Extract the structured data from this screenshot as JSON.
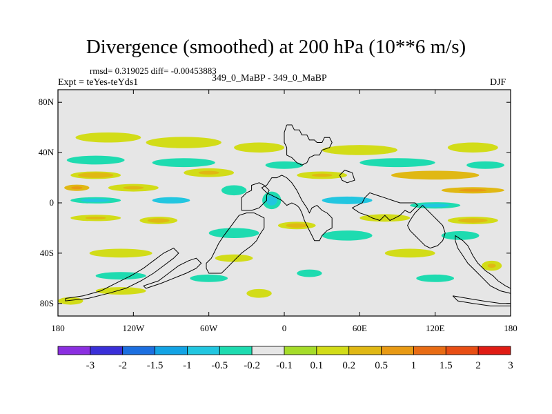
{
  "title": "Divergence (smoothed) at 200 hPa (10**6 m/s)",
  "stats_line": "rmsd= 0.319025 diff= -0.00453883",
  "case_line": "349_0_MaBP - 349_0_MaBP",
  "experiment_label": "Expt = teYes-teYds1",
  "season_label": "DJF",
  "colors": {
    "background": "#e6e6e6",
    "outline": "#000000",
    "palette": [
      "#8b2fe0",
      "#3a2fd8",
      "#1c6fe0",
      "#13a3e4",
      "#22c6e0",
      "#1edbb0",
      "#e6e6e6",
      "#a5dc2a",
      "#d2dc18",
      "#e0b814",
      "#e89a14",
      "#e86c14",
      "#e84e14",
      "#e01c14"
    ]
  },
  "map": {
    "lon_range": [
      -180,
      180
    ],
    "lat_range": [
      -90,
      90
    ],
    "lat_ticks": [
      {
        "value": 80,
        "label": "80N"
      },
      {
        "value": 40,
        "label": "40N"
      },
      {
        "value": 0,
        "label": "0"
      },
      {
        "value": -40,
        "label": "40S"
      },
      {
        "value": -80,
        "label": "80S"
      }
    ],
    "lon_ticks": [
      {
        "value": -180,
        "label": "180"
      },
      {
        "value": -120,
        "label": "120W"
      },
      {
        "value": -60,
        "label": "60W"
      },
      {
        "value": 0,
        "label": "0"
      },
      {
        "value": 60,
        "label": "60E"
      },
      {
        "value": 120,
        "label": "120E"
      },
      {
        "value": 180,
        "label": "180"
      }
    ],
    "continents": [
      [
        [
          2,
          62
        ],
        [
          6,
          62
        ],
        [
          8,
          58
        ],
        [
          12,
          58
        ],
        [
          14,
          54
        ],
        [
          18,
          54
        ],
        [
          20,
          50
        ],
        [
          24,
          50
        ],
        [
          26,
          48
        ],
        [
          30,
          48
        ],
        [
          32,
          52
        ],
        [
          36,
          52
        ],
        [
          38,
          48
        ],
        [
          36,
          44
        ],
        [
          30,
          42
        ],
        [
          28,
          38
        ],
        [
          24,
          38
        ],
        [
          20,
          36
        ],
        [
          18,
          32
        ],
        [
          14,
          30
        ],
        [
          10,
          32
        ],
        [
          6,
          36
        ],
        [
          2,
          38
        ],
        [
          2,
          44
        ],
        [
          0,
          48
        ],
        [
          0,
          56
        ],
        [
          2,
          62
        ]
      ],
      [
        [
          -18,
          12
        ],
        [
          -14,
          14
        ],
        [
          -10,
          20
        ],
        [
          -6,
          20
        ],
        [
          -2,
          22
        ],
        [
          2,
          20
        ],
        [
          6,
          16
        ],
        [
          10,
          10
        ],
        [
          14,
          2
        ],
        [
          18,
          -4
        ],
        [
          20,
          -8
        ],
        [
          22,
          -4
        ],
        [
          26,
          -2
        ],
        [
          30,
          -6
        ],
        [
          34,
          -8
        ],
        [
          38,
          -12
        ],
        [
          38,
          -20
        ],
        [
          34,
          -22
        ],
        [
          30,
          -26
        ],
        [
          28,
          -30
        ],
        [
          24,
          -30
        ],
        [
          22,
          -26
        ],
        [
          20,
          -22
        ],
        [
          18,
          -18
        ],
        [
          16,
          -14
        ],
        [
          14,
          -8
        ],
        [
          12,
          -4
        ],
        [
          10,
          -2
        ],
        [
          6,
          0
        ],
        [
          2,
          -2
        ],
        [
          -2,
          2
        ],
        [
          -6,
          4
        ],
        [
          -10,
          6
        ],
        [
          -14,
          8
        ],
        [
          -18,
          12
        ]
      ],
      [
        [
          -34,
          -6
        ],
        [
          -26,
          -6
        ],
        [
          -20,
          -4
        ],
        [
          -18,
          -2
        ],
        [
          -14,
          2
        ],
        [
          -14,
          6
        ],
        [
          -12,
          10
        ],
        [
          -16,
          14
        ],
        [
          -20,
          16
        ],
        [
          -26,
          14
        ],
        [
          -26,
          10
        ],
        [
          -30,
          8
        ],
        [
          -34,
          4
        ],
        [
          -34,
          -2
        ],
        [
          -34,
          -6
        ]
      ],
      [
        [
          -24,
          -8
        ],
        [
          -20,
          -10
        ],
        [
          -16,
          -12
        ],
        [
          -16,
          -20
        ],
        [
          -20,
          -26
        ],
        [
          -22,
          -30
        ],
        [
          -26,
          -34
        ],
        [
          -34,
          -40
        ],
        [
          -40,
          -46
        ],
        [
          -46,
          -52
        ],
        [
          -50,
          -56
        ],
        [
          -60,
          -56
        ],
        [
          -62,
          -52
        ],
        [
          -62,
          -48
        ],
        [
          -58,
          -44
        ],
        [
          -56,
          -40
        ],
        [
          -52,
          -32
        ],
        [
          -48,
          -26
        ],
        [
          -42,
          -18
        ],
        [
          -36,
          -10
        ],
        [
          -30,
          -8
        ],
        [
          -24,
          -8
        ]
      ],
      [
        [
          54,
          -4
        ],
        [
          58,
          -2
        ],
        [
          62,
          0
        ],
        [
          64,
          4
        ],
        [
          68,
          8
        ],
        [
          74,
          6
        ],
        [
          80,
          4
        ],
        [
          86,
          2
        ],
        [
          92,
          0
        ],
        [
          96,
          0
        ],
        [
          104,
          0
        ],
        [
          106,
          -2
        ],
        [
          104,
          -4
        ],
        [
          100,
          -8
        ],
        [
          96,
          -6
        ],
        [
          92,
          -10
        ],
        [
          88,
          -12
        ],
        [
          84,
          -14
        ],
        [
          80,
          -10
        ],
        [
          76,
          -14
        ],
        [
          70,
          -12
        ],
        [
          66,
          -10
        ],
        [
          60,
          -8
        ],
        [
          54,
          -4
        ]
      ],
      [
        [
          110,
          -2
        ],
        [
          114,
          -6
        ],
        [
          118,
          -10
        ],
        [
          122,
          -14
        ],
        [
          126,
          -18
        ],
        [
          128,
          -24
        ],
        [
          126,
          -30
        ],
        [
          122,
          -34
        ],
        [
          116,
          -36
        ],
        [
          112,
          -34
        ],
        [
          108,
          -30
        ],
        [
          104,
          -26
        ],
        [
          100,
          -22
        ],
        [
          98,
          -18
        ],
        [
          100,
          -14
        ],
        [
          104,
          -8
        ],
        [
          108,
          -4
        ],
        [
          110,
          -2
        ]
      ],
      [
        [
          136,
          -26
        ],
        [
          142,
          -30
        ],
        [
          146,
          -34
        ],
        [
          148,
          -38
        ],
        [
          150,
          -42
        ],
        [
          154,
          -48
        ],
        [
          160,
          -54
        ],
        [
          166,
          -58
        ],
        [
          170,
          -62
        ],
        [
          176,
          -66
        ],
        [
          180,
          -68
        ],
        [
          180,
          -72
        ],
        [
          172,
          -70
        ],
        [
          164,
          -66
        ],
        [
          158,
          -60
        ],
        [
          152,
          -54
        ],
        [
          146,
          -48
        ],
        [
          142,
          -42
        ],
        [
          138,
          -36
        ],
        [
          136,
          -30
        ],
        [
          136,
          -26
        ]
      ],
      [
        [
          -174,
          -76
        ],
        [
          -160,
          -74
        ],
        [
          -146,
          -70
        ],
        [
          -134,
          -64
        ],
        [
          -122,
          -58
        ],
        [
          -112,
          -52
        ],
        [
          -104,
          -46
        ],
        [
          -96,
          -40
        ],
        [
          -88,
          -36
        ],
        [
          -84,
          -40
        ],
        [
          -88,
          -44
        ],
        [
          -96,
          -50
        ],
        [
          -104,
          -56
        ],
        [
          -114,
          -62
        ],
        [
          -126,
          -68
        ],
        [
          -140,
          -72
        ],
        [
          -156,
          -76
        ],
        [
          -174,
          -78
        ],
        [
          -174,
          -76
        ]
      ],
      [
        [
          -112,
          -66
        ],
        [
          -100,
          -62
        ],
        [
          -92,
          -56
        ],
        [
          -84,
          -50
        ],
        [
          -76,
          -46
        ],
        [
          -70,
          -44
        ],
        [
          -66,
          -48
        ],
        [
          -70,
          -52
        ],
        [
          -78,
          -56
        ],
        [
          -88,
          -60
        ],
        [
          -98,
          -64
        ],
        [
          -110,
          -68
        ],
        [
          -112,
          -66
        ]
      ],
      [
        [
          134,
          -74
        ],
        [
          146,
          -76
        ],
        [
          158,
          -78
        ],
        [
          172,
          -80
        ],
        [
          180,
          -80
        ],
        [
          180,
          -82
        ],
        [
          164,
          -82
        ],
        [
          150,
          -80
        ],
        [
          138,
          -78
        ],
        [
          134,
          -74
        ]
      ],
      [
        [
          44,
          22
        ],
        [
          48,
          26
        ],
        [
          54,
          24
        ],
        [
          56,
          18
        ],
        [
          50,
          16
        ],
        [
          46,
          18
        ],
        [
          44,
          22
        ]
      ]
    ],
    "features": [
      {
        "lon": -140,
        "lat": 52,
        "w": 52,
        "h": 8,
        "v": 0.35
      },
      {
        "lon": -80,
        "lat": 48,
        "w": 60,
        "h": 9,
        "v": 0.3
      },
      {
        "lon": -20,
        "lat": 44,
        "w": 40,
        "h": 8,
        "v": 0.25
      },
      {
        "lon": 60,
        "lat": 42,
        "w": 60,
        "h": 8,
        "v": 0.35
      },
      {
        "lon": 150,
        "lat": 44,
        "w": 40,
        "h": 8,
        "v": 0.3
      },
      {
        "lon": -150,
        "lat": 34,
        "w": 46,
        "h": 7,
        "v": -0.35
      },
      {
        "lon": -80,
        "lat": 32,
        "w": 50,
        "h": 7,
        "v": -0.3
      },
      {
        "lon": 0,
        "lat": 30,
        "w": 30,
        "h": 6,
        "v": -0.25
      },
      {
        "lon": 90,
        "lat": 32,
        "w": 60,
        "h": 7,
        "v": -0.4
      },
      {
        "lon": 160,
        "lat": 30,
        "w": 30,
        "h": 6,
        "v": -0.3
      },
      {
        "lon": -150,
        "lat": 22,
        "w": 40,
        "h": 6,
        "v": 0.7
      },
      {
        "lon": -60,
        "lat": 24,
        "w": 40,
        "h": 7,
        "v": 0.55
      },
      {
        "lon": 30,
        "lat": 22,
        "w": 40,
        "h": 6,
        "v": 0.6
      },
      {
        "lon": 120,
        "lat": 22,
        "w": 70,
        "h": 7,
        "v": 0.9
      },
      {
        "lon": -165,
        "lat": 12,
        "w": 20,
        "h": 5,
        "v": 1.2
      },
      {
        "lon": -120,
        "lat": 12,
        "w": 40,
        "h": 6,
        "v": 0.6
      },
      {
        "lon": 150,
        "lat": 10,
        "w": 50,
        "h": 5,
        "v": 1.2
      },
      {
        "lon": -40,
        "lat": 10,
        "w": 20,
        "h": 8,
        "v": -0.3
      },
      {
        "lon": -150,
        "lat": 2,
        "w": 40,
        "h": 5,
        "v": -0.5
      },
      {
        "lon": -90,
        "lat": 2,
        "w": 30,
        "h": 5,
        "v": -0.8
      },
      {
        "lon": 50,
        "lat": 2,
        "w": 40,
        "h": 6,
        "v": -0.8
      },
      {
        "lon": 120,
        "lat": -2,
        "w": 40,
        "h": 5,
        "v": -0.5
      },
      {
        "lon": -10,
        "lat": 2,
        "w": 15,
        "h": 14,
        "v": -0.5
      },
      {
        "lon": -150,
        "lat": -12,
        "w": 40,
        "h": 5,
        "v": 0.6
      },
      {
        "lon": -100,
        "lat": -14,
        "w": 30,
        "h": 6,
        "v": 0.5
      },
      {
        "lon": 10,
        "lat": -18,
        "w": 30,
        "h": 6,
        "v": 0.5
      },
      {
        "lon": 80,
        "lat": -12,
        "w": 40,
        "h": 6,
        "v": 0.4
      },
      {
        "lon": 150,
        "lat": -14,
        "w": 40,
        "h": 6,
        "v": 0.5
      },
      {
        "lon": -40,
        "lat": -24,
        "w": 40,
        "h": 8,
        "v": -0.3
      },
      {
        "lon": 50,
        "lat": -26,
        "w": 40,
        "h": 8,
        "v": -0.35
      },
      {
        "lon": 140,
        "lat": -26,
        "w": 30,
        "h": 7,
        "v": -0.3
      },
      {
        "lon": -130,
        "lat": -40,
        "w": 50,
        "h": 7,
        "v": 0.3
      },
      {
        "lon": -40,
        "lat": -44,
        "w": 30,
        "h": 6,
        "v": 0.4
      },
      {
        "lon": 100,
        "lat": -40,
        "w": 40,
        "h": 7,
        "v": 0.35
      },
      {
        "lon": 165,
        "lat": -50,
        "w": 16,
        "h": 8,
        "v": 0.6
      },
      {
        "lon": -130,
        "lat": -58,
        "w": 40,
        "h": 6,
        "v": -0.3
      },
      {
        "lon": -60,
        "lat": -60,
        "w": 30,
        "h": 6,
        "v": -0.3
      },
      {
        "lon": 20,
        "lat": -56,
        "w": 20,
        "h": 6,
        "v": -0.3
      },
      {
        "lon": 120,
        "lat": -60,
        "w": 30,
        "h": 6,
        "v": -0.25
      },
      {
        "lon": -130,
        "lat": -70,
        "w": 40,
        "h": 6,
        "v": 0.3
      },
      {
        "lon": -20,
        "lat": -72,
        "w": 20,
        "h": 7,
        "v": 0.4
      },
      {
        "lon": -170,
        "lat": -78,
        "w": 20,
        "h": 6,
        "v": 0.35
      }
    ]
  },
  "legend": {
    "labels": [
      "-3",
      "-2",
      "-1.5",
      "-1",
      "-0.5",
      "-0.2",
      "-0.1",
      "0.1",
      "0.2",
      "0.5",
      "1",
      "1.5",
      "2",
      "3"
    ]
  }
}
